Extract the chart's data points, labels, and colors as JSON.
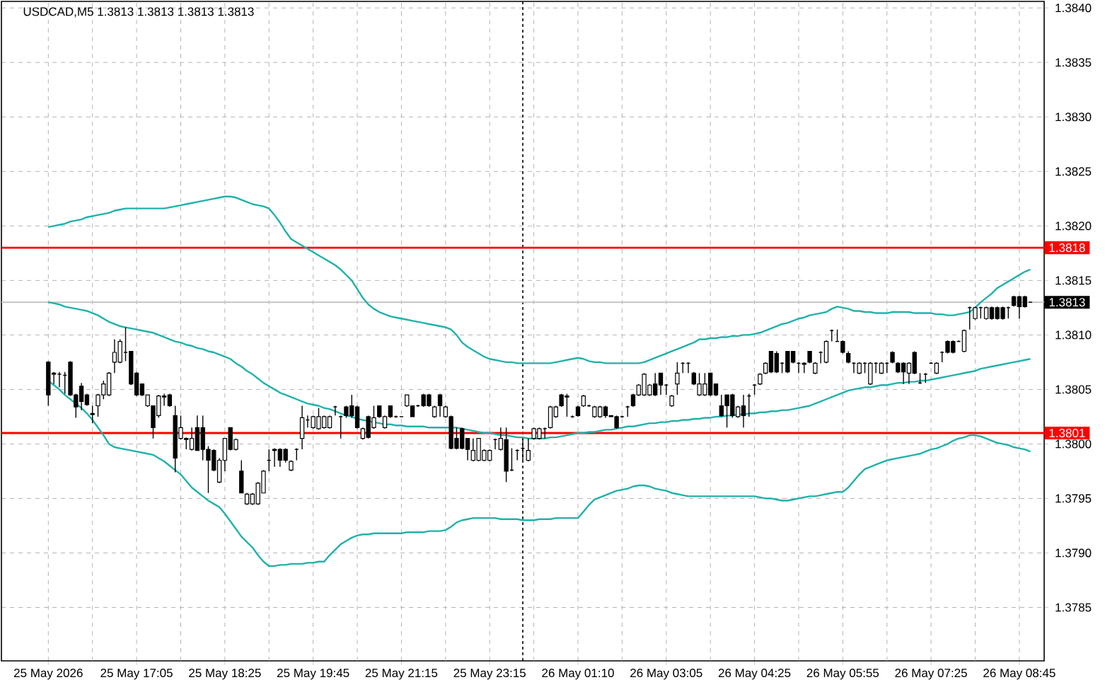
{
  "chart_data": {
    "type": "candlestick",
    "title": "USDCAD,M5  1.3813 1.3813 1.3813 1.3813",
    "categories": [
      "25 May 2026",
      null,
      null,
      null,
      null,
      null,
      null,
      null,
      null,
      null,
      null,
      null,
      null,
      null,
      null,
      null,
      "25 May 17:05",
      null,
      null,
      null,
      null,
      null,
      null,
      null,
      null,
      null,
      null,
      null,
      null,
      null,
      null,
      null,
      "25 May 18:25",
      null,
      null,
      null,
      null,
      null,
      null,
      null,
      null,
      null,
      null,
      null,
      null,
      null,
      null,
      null,
      "25 May 19:45",
      null,
      null,
      null,
      null,
      null,
      null,
      null,
      null,
      null,
      null,
      null,
      null,
      null,
      null,
      null,
      "25 May 21:15",
      null,
      null,
      null,
      null,
      null,
      null,
      null,
      null,
      null,
      null,
      null,
      null,
      null,
      null,
      null,
      "25 May 23:15",
      null,
      null,
      null,
      null,
      null,
      null,
      null,
      null,
      null,
      null,
      null,
      null,
      null,
      null,
      null,
      "26 May 01:10",
      null,
      null,
      null,
      null,
      null,
      null,
      null,
      null,
      null,
      null,
      null,
      null,
      null,
      null,
      null,
      "26 May 03:05",
      null,
      null,
      null,
      null,
      null,
      null,
      null,
      null,
      null,
      null,
      null,
      null,
      null,
      null,
      null,
      "26 May 04:25",
      null,
      null,
      null,
      null,
      null,
      null,
      null,
      null,
      null,
      null,
      null,
      null,
      null,
      null,
      null,
      "26 May 05:55",
      null,
      null,
      null,
      null,
      null,
      null,
      null,
      null,
      null,
      null,
      null,
      null,
      null,
      null,
      null,
      "26 May 07:25",
      null,
      null,
      null,
      null,
      null,
      null,
      null,
      null,
      null,
      null,
      null,
      null,
      null,
      null,
      null,
      "26 May 08:45",
      null,
      null
    ],
    "ohlc": [
      [
        1.38075,
        1.38076,
        1.38035,
        1.38045
      ],
      [
        1.38065,
        1.38066,
        1.38055,
        1.38064
      ],
      [
        1.38064,
        1.38066,
        1.38052,
        1.38064
      ],
      [
        1.38063,
        1.38066,
        1.38046,
        1.38063
      ],
      [
        1.38075,
        1.38076,
        1.38044,
        1.38045
      ],
      [
        1.38045,
        1.38046,
        1.38024,
        1.38034
      ],
      [
        1.38053,
        1.38056,
        1.38031,
        1.38039
      ],
      [
        1.38045,
        1.38046,
        1.38035,
        1.38036
      ],
      [
        1.38028,
        1.38035,
        1.38019,
        1.38027
      ],
      [
        1.38035,
        1.38046,
        1.38025,
        1.38045
      ],
      [
        1.38045,
        1.38058,
        1.38041,
        1.38055
      ],
      [
        1.38045,
        1.38066,
        1.38044,
        1.38065
      ],
      [
        1.38075,
        1.38096,
        1.38065,
        1.38084
      ],
      [
        1.38075,
        1.38096,
        1.38074,
        1.38094
      ],
      [
        1.38084,
        1.38107,
        1.38076,
        1.38084
      ],
      [
        1.38085,
        1.38085,
        1.38054,
        1.38055
      ],
      [
        1.38065,
        1.38066,
        1.38044,
        1.38045
      ],
      [
        1.38055,
        1.38055,
        1.38044,
        1.38045
      ],
      [
        1.38035,
        1.38045,
        1.38034,
        1.38045
      ],
      [
        1.38035,
        1.38035,
        1.38005,
        1.38015
      ],
      [
        1.38026,
        1.38045,
        1.38024,
        1.38044
      ],
      [
        1.38044,
        1.38046,
        1.38035,
        1.38043
      ],
      [
        1.38045,
        1.38046,
        1.38034,
        1.38035
      ],
      [
        1.38026,
        1.38035,
        1.37974,
        1.37987
      ],
      [
        1.38005,
        1.38026,
        1.38004,
        1.38015
      ],
      [
        1.38005,
        1.38006,
        1.37995,
        1.38004
      ],
      [
        1.37995,
        1.38015,
        1.37994,
        1.38005
      ],
      [
        1.38015,
        1.38026,
        1.37994,
        1.37994
      ],
      [
        1.38015,
        1.38026,
        1.37985,
        1.37995
      ],
      [
        1.37995,
        1.37998,
        1.37955,
        1.37985
      ],
      [
        1.37994,
        1.37995,
        1.37975,
        1.37976
      ],
      [
        1.37965,
        1.37987,
        1.37964,
        1.37985
      ],
      [
        1.37985,
        1.38005,
        1.37975,
        1.38005
      ],
      [
        1.38015,
        1.38015,
        1.37994,
        1.37995
      ],
      [
        1.37995,
        1.38005,
        1.37994,
        1.38004
      ],
      [
        1.37975,
        1.37985,
        1.37955,
        1.37955
      ],
      [
        1.37945,
        1.37955,
        1.37944,
        1.37954
      ],
      [
        1.37945,
        1.37955,
        1.37944,
        1.37954
      ],
      [
        1.37945,
        1.37965,
        1.37944,
        1.37964
      ],
      [
        1.37955,
        1.37976,
        1.37955,
        1.37975
      ],
      [
        1.37985,
        1.37995,
        1.37975,
        1.37985
      ],
      [
        1.37995,
        1.37996,
        1.37979,
        1.37994
      ],
      [
        1.37995,
        1.37996,
        1.37979,
        1.37985
      ],
      [
        1.37995,
        1.37996,
        1.37983,
        1.37985
      ],
      [
        1.37976,
        1.37985,
        1.37975,
        1.37984
      ],
      [
        1.37995,
        1.37996,
        1.37985,
        1.37995
      ],
      [
        1.38005,
        1.38035,
        1.37995,
        1.38024
      ],
      [
        1.38022,
        1.38026,
        1.38015,
        1.38022
      ],
      [
        1.38015,
        1.38026,
        1.38014,
        1.38025
      ],
      [
        1.38014,
        1.38033,
        1.38013,
        1.38025
      ],
      [
        1.38015,
        1.38026,
        1.38014,
        1.38025
      ],
      [
        1.38015,
        1.38026,
        1.38014,
        1.38025
      ],
      [
        1.38034,
        1.38035,
        1.38026,
        1.38034
      ],
      [
        1.38025,
        1.38026,
        1.38005,
        1.38025
      ],
      [
        1.38034,
        1.38035,
        1.38024,
        1.38026
      ],
      [
        1.38035,
        1.38045,
        1.38024,
        1.38026
      ],
      [
        1.38034,
        1.38035,
        1.38014,
        1.38015
      ],
      [
        1.38005,
        1.38015,
        1.38004,
        1.38014
      ],
      [
        1.38025,
        1.38026,
        1.38005,
        1.38006
      ],
      [
        1.38015,
        1.38035,
        1.38014,
        1.38024
      ],
      [
        1.38035,
        1.38035,
        1.38024,
        1.38025
      ],
      [
        1.38015,
        1.38026,
        1.38014,
        1.38025
      ],
      [
        1.38035,
        1.38035,
        1.38024,
        1.38025
      ],
      [
        1.38025,
        1.38026,
        1.38024,
        1.38025
      ],
      [
        1.38025,
        1.38025,
        1.38025,
        1.38025
      ],
      [
        1.38035,
        1.38045,
        1.38034,
        1.38045
      ],
      [
        1.38035,
        1.38035,
        1.38025,
        1.38025
      ],
      [
        1.38035,
        1.38036,
        1.38034,
        1.38035
      ],
      [
        1.38045,
        1.38046,
        1.38034,
        1.38035
      ],
      [
        1.38045,
        1.38046,
        1.38034,
        1.38035
      ],
      [
        1.38025,
        1.38035,
        1.38024,
        1.38034
      ],
      [
        1.38045,
        1.38046,
        1.38025,
        1.38035
      ],
      [
        1.38025,
        1.38035,
        1.38024,
        1.38034
      ],
      [
        1.38025,
        1.38026,
        1.37995,
        1.37996
      ],
      [
        1.38005,
        1.38015,
        1.37995,
        1.37996
      ],
      [
        1.38014,
        1.38015,
        1.37995,
        1.37996
      ],
      [
        1.38005,
        1.38005,
        1.37985,
        1.37995
      ],
      [
        1.37985,
        1.38005,
        1.37984,
        1.37994
      ],
      [
        1.37985,
        1.38005,
        1.37984,
        1.38005
      ],
      [
        1.37985,
        1.37995,
        1.37984,
        1.37994
      ],
      [
        1.37985,
        1.37995,
        1.37984,
        1.37994
      ],
      [
        1.38004,
        1.38005,
        1.37995,
        1.38004
      ],
      [
        1.37995,
        1.38015,
        1.37994,
        1.38005
      ],
      [
        1.38004,
        1.38015,
        1.37965,
        1.37975
      ],
      [
        1.37976,
        1.37996,
        1.37975,
        1.37976
      ],
      [
        1.37994,
        1.37995,
        1.37985,
        1.37994
      ],
      [
        1.37996,
        1.38005,
        1.37985,
        1.37996
      ],
      [
        1.37985,
        1.38005,
        1.37984,
        1.37994
      ],
      [
        1.38005,
        1.38015,
        1.38004,
        1.38014
      ],
      [
        1.38005,
        1.38015,
        1.38004,
        1.38014
      ],
      [
        1.38014,
        1.38015,
        1.38005,
        1.38014
      ],
      [
        1.38015,
        1.38035,
        1.38014,
        1.38034
      ],
      [
        1.38025,
        1.38035,
        1.38024,
        1.38034
      ],
      [
        1.38045,
        1.38046,
        1.38034,
        1.38035
      ],
      [
        1.38044,
        1.38046,
        1.38025,
        1.38043
      ],
      [
        1.38025,
        1.38026,
        1.38024,
        1.38025
      ],
      [
        1.38034,
        1.38035,
        1.38025,
        1.38026
      ],
      [
        1.38035,
        1.38045,
        1.38034,
        1.38044
      ],
      [
        1.38035,
        1.38036,
        1.38034,
        1.38035
      ],
      [
        1.38025,
        1.38035,
        1.38024,
        1.38034
      ],
      [
        1.38025,
        1.38035,
        1.38024,
        1.38034
      ],
      [
        1.38034,
        1.38035,
        1.38024,
        1.38026
      ],
      [
        1.38026,
        1.38026,
        1.38025,
        1.38025
      ],
      [
        1.38025,
        1.38026,
        1.38014,
        1.38015
      ],
      [
        1.38025,
        1.38026,
        1.38024,
        1.38025
      ],
      [
        1.38034,
        1.38035,
        1.38025,
        1.38034
      ],
      [
        1.38045,
        1.38046,
        1.38034,
        1.38035
      ],
      [
        1.38045,
        1.38055,
        1.38044,
        1.38054
      ],
      [
        1.38045,
        1.38065,
        1.38044,
        1.38064
      ],
      [
        1.38045,
        1.38055,
        1.38044,
        1.38054
      ],
      [
        1.38055,
        1.38065,
        1.38044,
        1.38045
      ],
      [
        1.38065,
        1.38065,
        1.38045,
        1.38054
      ],
      [
        1.38054,
        1.38055,
        1.38045,
        1.38054
      ],
      [
        1.38035,
        1.38045,
        1.38034,
        1.38044
      ],
      [
        1.38055,
        1.38075,
        1.38045,
        1.38065
      ],
      [
        1.38074,
        1.38075,
        1.38065,
        1.38074
      ],
      [
        1.38074,
        1.38075,
        1.38065,
        1.38074
      ],
      [
        1.38065,
        1.38066,
        1.38054,
        1.38055
      ],
      [
        1.38045,
        1.38065,
        1.38044,
        1.38055
      ],
      [
        1.38045,
        1.38065,
        1.38044,
        1.38055
      ],
      [
        1.38065,
        1.38065,
        1.38044,
        1.38045
      ],
      [
        1.38055,
        1.38055,
        1.38044,
        1.38045
      ],
      [
        1.38035,
        1.38045,
        1.38025,
        1.38026
      ],
      [
        1.38045,
        1.38045,
        1.38015,
        1.38035
      ],
      [
        1.38045,
        1.38046,
        1.38024,
        1.38026
      ],
      [
        1.38025,
        1.38035,
        1.38024,
        1.38034
      ],
      [
        1.38035,
        1.38045,
        1.38015,
        1.38026
      ],
      [
        1.38044,
        1.38046,
        1.38025,
        1.38044
      ],
      [
        1.38054,
        1.38055,
        1.38045,
        1.38054
      ],
      [
        1.38055,
        1.38065,
        1.38054,
        1.38064
      ],
      [
        1.38065,
        1.38075,
        1.38064,
        1.38074
      ],
      [
        1.38085,
        1.38085,
        1.38065,
        1.38066
      ],
      [
        1.38083,
        1.38085,
        1.38065,
        1.38066
      ],
      [
        1.38074,
        1.38075,
        1.38065,
        1.38074
      ],
      [
        1.38085,
        1.38085,
        1.38065,
        1.38066
      ],
      [
        1.38085,
        1.38085,
        1.38074,
        1.38075
      ],
      [
        1.38074,
        1.38075,
        1.38065,
        1.38074
      ],
      [
        1.38074,
        1.38075,
        1.38065,
        1.38073
      ],
      [
        1.38085,
        1.38085,
        1.38074,
        1.38075
      ],
      [
        1.38065,
        1.38075,
        1.38064,
        1.38074
      ],
      [
        1.38084,
        1.38085,
        1.38074,
        1.38084
      ],
      [
        1.38075,
        1.38095,
        1.38074,
        1.38094
      ],
      [
        1.38104,
        1.38105,
        1.38094,
        1.38104
      ],
      [
        1.38094,
        1.38105,
        1.38094,
        1.38094
      ],
      [
        1.38094,
        1.38095,
        1.38083,
        1.38084
      ],
      [
        1.38083,
        1.38085,
        1.38074,
        1.38075
      ],
      [
        1.38074,
        1.38075,
        1.38065,
        1.38074
      ],
      [
        1.38065,
        1.38075,
        1.38064,
        1.38074
      ],
      [
        1.38074,
        1.38075,
        1.38065,
        1.38074
      ],
      [
        1.38055,
        1.38075,
        1.38054,
        1.38074
      ],
      [
        1.38074,
        1.38075,
        1.38065,
        1.38074
      ],
      [
        1.38065,
        1.38075,
        1.38064,
        1.38074
      ],
      [
        1.38074,
        1.38075,
        1.38065,
        1.38074
      ],
      [
        1.38084,
        1.38085,
        1.38074,
        1.38075
      ],
      [
        1.38074,
        1.38075,
        1.38065,
        1.38066
      ],
      [
        1.38074,
        1.38075,
        1.38055,
        1.38066
      ],
      [
        1.38065,
        1.38075,
        1.38055,
        1.38074
      ],
      [
        1.38084,
        1.38085,
        1.38064,
        1.38065
      ],
      [
        1.38056,
        1.38065,
        1.38055,
        1.38056
      ],
      [
        1.38064,
        1.38065,
        1.38056,
        1.38064
      ],
      [
        1.38074,
        1.38075,
        1.38074,
        1.38074
      ],
      [
        1.38065,
        1.38075,
        1.38064,
        1.38074
      ],
      [
        1.38084,
        1.38085,
        1.38075,
        1.38084
      ],
      [
        1.38094,
        1.38095,
        1.38083,
        1.38084
      ],
      [
        1.38094,
        1.38095,
        1.38083,
        1.38084
      ],
      [
        1.38094,
        1.38095,
        1.38094,
        1.38094
      ],
      [
        1.38085,
        1.38105,
        1.38084,
        1.38104
      ],
      [
        1.38125,
        1.38126,
        1.38105,
        1.38125
      ],
      [
        1.38115,
        1.38126,
        1.38114,
        1.38125
      ],
      [
        1.38125,
        1.38126,
        1.38115,
        1.38125
      ],
      [
        1.38115,
        1.38126,
        1.38114,
        1.38125
      ],
      [
        1.38125,
        1.38126,
        1.38114,
        1.38115
      ],
      [
        1.38125,
        1.38126,
        1.38114,
        1.38115
      ],
      [
        1.38125,
        1.38126,
        1.38114,
        1.38115
      ],
      [
        1.38125,
        1.38126,
        1.38115,
        1.38125
      ],
      [
        1.38135,
        1.38136,
        1.38126,
        1.38127
      ],
      [
        1.38135,
        1.38136,
        1.38115,
        1.38126
      ],
      [
        1.38135,
        1.38136,
        1.38125,
        1.38126
      ],
      [
        1.3813,
        1.3813,
        1.3813,
        1.3813
      ]
    ],
    "series": [
      {
        "type": "line",
        "color": "#20b2aa",
        "values": [
          1.38199,
          1.382,
          1.38201,
          1.38202,
          1.38204,
          1.38205,
          1.38206,
          1.38208,
          1.38209,
          1.3821,
          1.38211,
          1.38212,
          1.38214,
          1.38215,
          1.38216,
          1.38216,
          1.38216,
          1.38216,
          1.38216,
          1.38216,
          1.38216,
          1.38216,
          1.38217,
          1.38218,
          1.38219,
          1.3822,
          1.38221,
          1.38222,
          1.38223,
          1.38224,
          1.38225,
          1.38226,
          1.38227,
          1.38227,
          1.38226,
          1.38224,
          1.38222,
          1.3822,
          1.38219,
          1.38218,
          1.38216,
          1.3821,
          1.38203,
          1.38195,
          1.38188,
          1.38185,
          1.38182,
          1.38179,
          1.38176,
          1.38173,
          1.3817,
          1.38167,
          1.38164,
          1.3816,
          1.38155,
          1.3815,
          1.38142,
          1.38134,
          1.38128,
          1.38124,
          1.38121,
          1.38119,
          1.38117,
          1.38116,
          1.38115,
          1.38114,
          1.38113,
          1.38112,
          1.38111,
          1.3811,
          1.38109,
          1.38108,
          1.38107,
          1.38105,
          1.381,
          1.38093,
          1.38089,
          1.38086,
          1.38083,
          1.3808,
          1.38078,
          1.38077,
          1.38076,
          1.38075,
          1.38075,
          1.38074,
          1.38074,
          1.38074,
          1.38074,
          1.38074,
          1.38074,
          1.38074,
          1.38075,
          1.38076,
          1.38077,
          1.38078,
          1.38079,
          1.38078,
          1.38076,
          1.38075,
          1.38075,
          1.38074,
          1.38074,
          1.38074,
          1.38074,
          1.38074,
          1.38074,
          1.38074,
          1.38075,
          1.38077,
          1.38079,
          1.38081,
          1.38083,
          1.38085,
          1.38087,
          1.38089,
          1.38091,
          1.38093,
          1.38096,
          1.38096,
          1.38097,
          1.38097,
          1.38098,
          1.38098,
          1.38099,
          1.38099,
          1.381,
          1.381,
          1.38101,
          1.38102,
          1.38104,
          1.38106,
          1.38108,
          1.3811,
          1.38111,
          1.38113,
          1.38115,
          1.38116,
          1.38118,
          1.38119,
          1.3812,
          1.38121,
          1.38124,
          1.38126,
          1.38125,
          1.38124,
          1.38122,
          1.38122,
          1.38121,
          1.38121,
          1.3812,
          1.3812,
          1.3812,
          1.38121,
          1.38121,
          1.38121,
          1.38121,
          1.3812,
          1.3812,
          1.3812,
          1.3812,
          1.38119,
          1.38119,
          1.38118,
          1.38118,
          1.38119,
          1.3812,
          1.38121,
          1.38125,
          1.3813,
          1.38134,
          1.38138,
          1.38143,
          1.38146,
          1.38149,
          1.38152,
          1.38155,
          1.38158,
          1.3816
        ]
      },
      {
        "type": "line",
        "color": "#20b2aa",
        "values": [
          1.3813,
          1.38129,
          1.38128,
          1.38126,
          1.38125,
          1.38124,
          1.38123,
          1.38122,
          1.3812,
          1.38118,
          1.38115,
          1.38112,
          1.3811,
          1.38108,
          1.38107,
          1.38106,
          1.38105,
          1.38104,
          1.38103,
          1.38102,
          1.381,
          1.38098,
          1.38096,
          1.38094,
          1.38093,
          1.38091,
          1.3809,
          1.38088,
          1.38087,
          1.38085,
          1.38084,
          1.38082,
          1.3808,
          1.38078,
          1.38074,
          1.38071,
          1.38067,
          1.38064,
          1.3806,
          1.38056,
          1.38053,
          1.3805,
          1.38047,
          1.38045,
          1.38043,
          1.38041,
          1.38039,
          1.38037,
          1.38036,
          1.38035,
          1.38033,
          1.38032,
          1.3803,
          1.38028,
          1.38026,
          1.38025,
          1.38023,
          1.38022,
          1.38021,
          1.3802,
          1.38019,
          1.38018,
          1.38018,
          1.38017,
          1.38017,
          1.38016,
          1.38016,
          1.38016,
          1.38016,
          1.38015,
          1.38015,
          1.38015,
          1.38015,
          1.38015,
          1.38015,
          1.38014,
          1.38013,
          1.38012,
          1.38011,
          1.3801,
          1.3801,
          1.38009,
          1.38008,
          1.38008,
          1.38007,
          1.38006,
          1.38006,
          1.38005,
          1.38005,
          1.38005,
          1.38005,
          1.38006,
          1.38006,
          1.38007,
          1.38008,
          1.38009,
          1.3801,
          1.3801,
          1.38011,
          1.38011,
          1.38012,
          1.38013,
          1.38013,
          1.38014,
          1.38015,
          1.38016,
          1.38016,
          1.38017,
          1.38018,
          1.38019,
          1.38019,
          1.3802,
          1.3802,
          1.38021,
          1.38021,
          1.38022,
          1.38022,
          1.38023,
          1.38023,
          1.38024,
          1.38024,
          1.38025,
          1.38025,
          1.38026,
          1.38026,
          1.38027,
          1.38027,
          1.38028,
          1.38028,
          1.38029,
          1.38029,
          1.3803,
          1.3803,
          1.38031,
          1.38031,
          1.38032,
          1.38033,
          1.38034,
          1.38035,
          1.38037,
          1.38039,
          1.38041,
          1.38043,
          1.38045,
          1.38047,
          1.38049,
          1.3805,
          1.38051,
          1.38052,
          1.38052,
          1.38053,
          1.38054,
          1.38054,
          1.38055,
          1.38056,
          1.38056,
          1.38057,
          1.38057,
          1.38058,
          1.38058,
          1.38059,
          1.3806,
          1.38061,
          1.38062,
          1.38063,
          1.38064,
          1.38065,
          1.38066,
          1.38067,
          1.38069,
          1.3807,
          1.38071,
          1.38072,
          1.38073,
          1.38074,
          1.38075,
          1.38076,
          1.38077,
          1.38078
        ]
      },
      {
        "type": "line",
        "color": "#20b2aa",
        "values": [
          1.38058,
          1.38054,
          1.3805,
          1.38045,
          1.38041,
          1.38037,
          1.38033,
          1.38028,
          1.38022,
          1.38015,
          1.38008,
          1.38,
          1.37997,
          1.37996,
          1.37995,
          1.37994,
          1.37993,
          1.37992,
          1.37991,
          1.3799,
          1.37987,
          1.37984,
          1.3798,
          1.37976,
          1.37972,
          1.37966,
          1.3796,
          1.37956,
          1.37952,
          1.37948,
          1.37945,
          1.37942,
          1.37936,
          1.37929,
          1.37922,
          1.37915,
          1.3791,
          1.37905,
          1.37898,
          1.37892,
          1.37888,
          1.37888,
          1.37889,
          1.37889,
          1.3789,
          1.3789,
          1.3789,
          1.37891,
          1.37891,
          1.37892,
          1.37892,
          1.37898,
          1.37903,
          1.37908,
          1.37911,
          1.37914,
          1.37916,
          1.37917,
          1.37917,
          1.37918,
          1.37918,
          1.37918,
          1.37918,
          1.37918,
          1.37918,
          1.37919,
          1.37919,
          1.37919,
          1.37919,
          1.3792,
          1.3792,
          1.3792,
          1.37921,
          1.37924,
          1.37928,
          1.3793,
          1.37931,
          1.37932,
          1.37932,
          1.37932,
          1.37932,
          1.37932,
          1.37931,
          1.37931,
          1.37931,
          1.37931,
          1.3793,
          1.3793,
          1.3793,
          1.37931,
          1.37931,
          1.37931,
          1.37932,
          1.37932,
          1.37932,
          1.37932,
          1.37932,
          1.37938,
          1.37944,
          1.37949,
          1.37951,
          1.37953,
          1.37955,
          1.37957,
          1.37958,
          1.37959,
          1.37961,
          1.37962,
          1.37962,
          1.37961,
          1.37959,
          1.37958,
          1.37957,
          1.37955,
          1.37954,
          1.37953,
          1.37952,
          1.37952,
          1.37952,
          1.37952,
          1.37952,
          1.37952,
          1.37952,
          1.37952,
          1.37952,
          1.37952,
          1.37952,
          1.37952,
          1.37952,
          1.37951,
          1.3795,
          1.3795,
          1.37949,
          1.37948,
          1.37948,
          1.37949,
          1.3795,
          1.37951,
          1.37952,
          1.37952,
          1.37953,
          1.37954,
          1.37955,
          1.37956,
          1.37956,
          1.3796,
          1.37966,
          1.37972,
          1.37977,
          1.37979,
          1.37981,
          1.37983,
          1.37985,
          1.37986,
          1.37987,
          1.37988,
          1.37989,
          1.3799,
          1.37991,
          1.37993,
          1.37995,
          1.37996,
          1.37998,
          1.38,
          1.38003,
          1.38005,
          1.38006,
          1.38008,
          1.38008,
          1.38007,
          1.38005,
          1.38003,
          1.38001,
          1.38,
          1.37999,
          1.37997,
          1.37996,
          1.37995,
          1.37993
        ]
      }
    ],
    "ylim": [
      1.37801,
      1.38406
    ],
    "yticks": [
      1.3785,
      {
        "value": 1.379,
        "label": "1.3790"
      },
      1.3795,
      {
        "value": 1.38,
        "label": "1.3800"
      },
      1.3805,
      {
        "value": 1.381,
        "label": "1.3810"
      },
      1.3815,
      {
        "value": 1.382,
        "label": "1.3820"
      },
      1.3825,
      {
        "value": 1.383,
        "label": "1.3830"
      },
      1.3835,
      {
        "value": 1.384,
        "label": "1.3840"
      }
    ],
    "grid": true,
    "ref_lines": [
      {
        "axis": "y",
        "value": 1.3818,
        "label": "1.3818",
        "color": "#ff0000"
      },
      {
        "axis": "y",
        "value": 1.3801,
        "label": "1.3801",
        "color": "#ff0000"
      },
      {
        "axis": "y",
        "value": 1.3813,
        "label": "1.3813",
        "color": "#c0c0c0"
      }
    ]
  }
}
